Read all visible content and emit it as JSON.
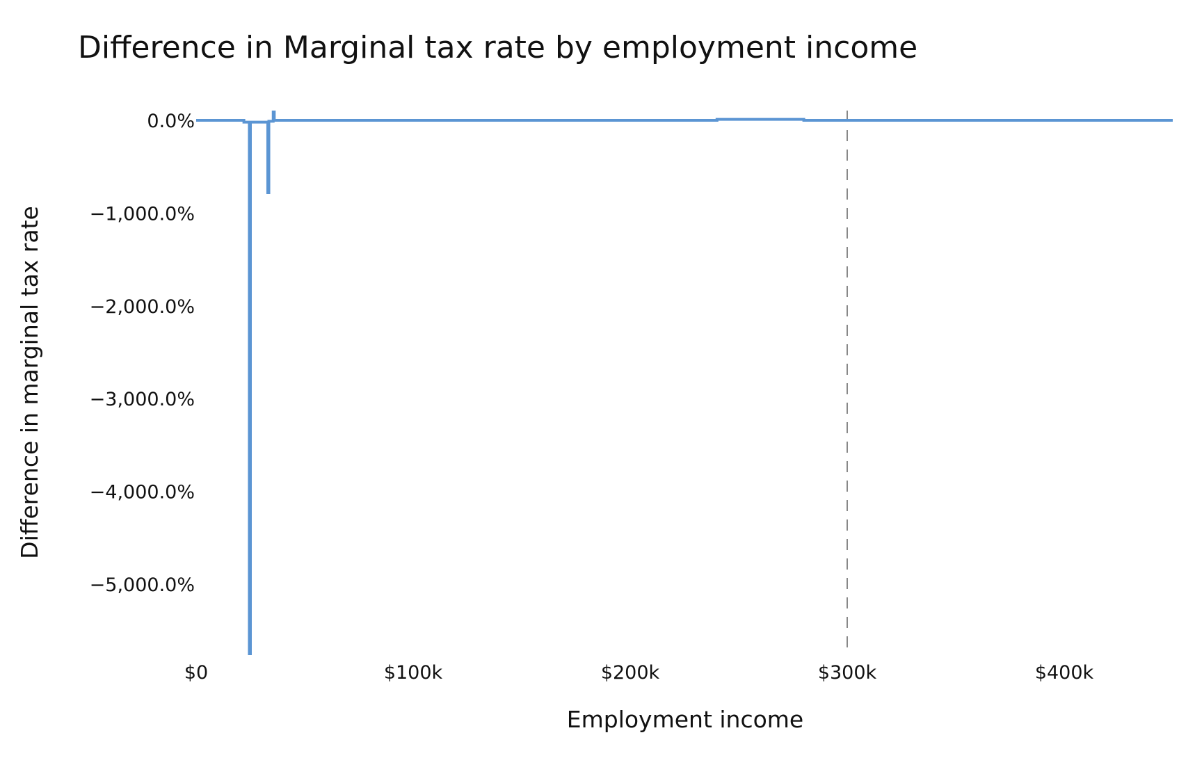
{
  "chart_data": {
    "type": "line",
    "title": "Difference in Marginal tax rate by employment income",
    "xlabel": "Employment income",
    "ylabel": "Difference in marginal tax rate",
    "xlim": [
      0,
      450000
    ],
    "ylim": [
      -5750,
      90
    ],
    "x_ticks": [
      {
        "value": 0,
        "label": "$0"
      },
      {
        "value": 100000,
        "label": "$100k"
      },
      {
        "value": 200000,
        "label": "$200k"
      },
      {
        "value": 300000,
        "label": "$300k"
      },
      {
        "value": 400000,
        "label": "$400k"
      }
    ],
    "y_ticks": [
      {
        "value": 0,
        "label": "0.0%"
      },
      {
        "value": -1000,
        "label": "−1,000.0%"
      },
      {
        "value": -2000,
        "label": "−2,000.0%"
      },
      {
        "value": -3000,
        "label": "−3,000.0%"
      },
      {
        "value": -4000,
        "label": "−4,000.0%"
      },
      {
        "value": -5000,
        "label": "−5,000.0%"
      }
    ],
    "grid": false,
    "reference_line": {
      "x": 300000,
      "style": "dashed",
      "color": "#888888"
    },
    "series": [
      {
        "name": "Difference in marginal tax rate",
        "color": "#5b95d3",
        "points": [
          [
            0,
            0
          ],
          [
            22000,
            0
          ],
          [
            22000,
            -20
          ],
          [
            24500,
            -20
          ],
          [
            24500,
            -5750
          ],
          [
            25000,
            -5750
          ],
          [
            25000,
            -20
          ],
          [
            33000,
            -20
          ],
          [
            33000,
            -780
          ],
          [
            33500,
            -780
          ],
          [
            33500,
            -10
          ],
          [
            35500,
            -10
          ],
          [
            35500,
            90
          ],
          [
            36000,
            90
          ],
          [
            36000,
            0
          ],
          [
            240000,
            0
          ],
          [
            240000,
            10
          ],
          [
            280000,
            10
          ],
          [
            280000,
            0
          ],
          [
            450000,
            0
          ]
        ]
      }
    ]
  }
}
